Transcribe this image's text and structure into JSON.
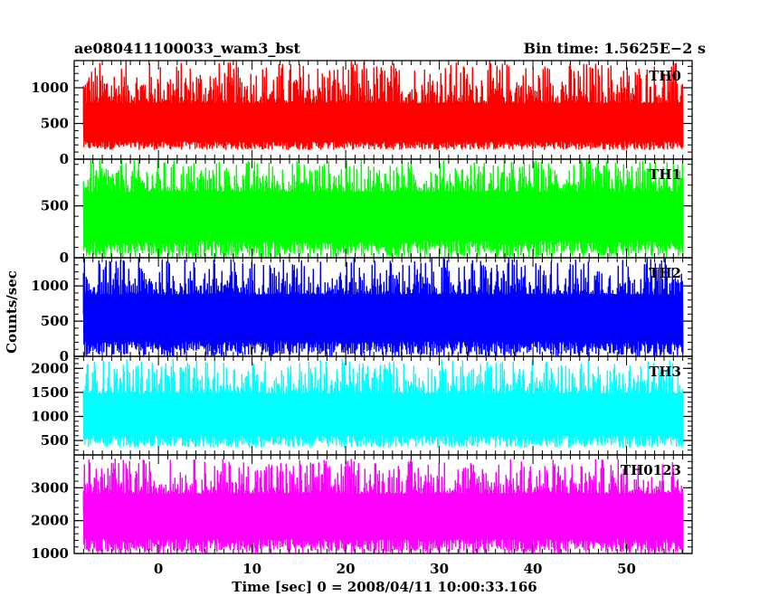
{
  "title_left": "ae080411100033_wam3_bst",
  "title_right": "Bin time: 1.5625E−2 s",
  "xlabel": "Time [sec] 0 = 2008/04/11 10:00:33.166",
  "ylabel": "Counts/sec",
  "chart_data": {
    "type": "line",
    "x_range": [
      -9,
      57
    ],
    "x_ticks": [
      0,
      10,
      20,
      30,
      40,
      50
    ],
    "bin_time_s": 0.015625,
    "data_range": [
      -8,
      56
    ],
    "series": [
      {
        "name": "TH0",
        "color": "#ff0000",
        "ylim": [
          0,
          1380
        ],
        "y_ticks": [
          0,
          500,
          1000
        ],
        "baseline_min": 130,
        "median": 470,
        "peak_max": 1380
      },
      {
        "name": "TH1",
        "color": "#00ff00",
        "ylim": [
          0,
          950
        ],
        "y_ticks": [
          0,
          500
        ],
        "baseline_min": 0,
        "median": 470,
        "peak_max": 950
      },
      {
        "name": "TH2",
        "color": "#0000ff",
        "ylim": [
          0,
          1400
        ],
        "y_ticks": [
          0,
          500,
          1000
        ],
        "baseline_min": 0,
        "median": 600,
        "peak_max": 1400
      },
      {
        "name": "TH3",
        "color": "#00ffff",
        "ylim": [
          200,
          2250
        ],
        "y_ticks": [
          500,
          1000,
          1500,
          2000
        ],
        "baseline_min": 350,
        "median": 1100,
        "peak_max": 2200
      },
      {
        "name": "TH0123",
        "color": "#ff00ff",
        "ylim": [
          1000,
          4000
        ],
        "y_ticks": [
          1000,
          2000,
          3000
        ],
        "baseline_min": 1000,
        "median": 2250,
        "peak_max": 3900
      }
    ]
  }
}
